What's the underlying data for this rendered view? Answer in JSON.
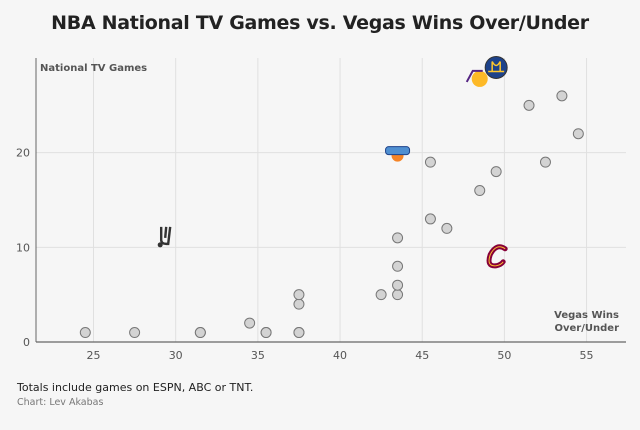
{
  "title": "NBA National TV Games vs. Vegas Wins Over/Under",
  "footer": {
    "note": "Totals include games on ESPN, ABC or TNT.",
    "credit": "Chart: Lev Akabas"
  },
  "chart_data": {
    "type": "scatter",
    "title": "NBA National TV Games vs. Vegas Wins Over/Under",
    "xlabel": "Vegas Wins Over/Under",
    "xlabel_lines": [
      "Vegas Wins",
      "Over/Under"
    ],
    "ylabel": "National TV Games",
    "xlim": [
      21.5,
      57.4
    ],
    "ylim": [
      0,
      30
    ],
    "xticks": [
      25,
      30,
      35,
      40,
      45,
      50,
      55
    ],
    "yticks": [
      0,
      10,
      20
    ],
    "grid": true,
    "legend": "none",
    "marker_color": "#d3d3d3",
    "marker_stroke": "#777777",
    "points": [
      {
        "x": 24.5,
        "y": 1
      },
      {
        "x": 27.5,
        "y": 1
      },
      {
        "x": 31.5,
        "y": 1
      },
      {
        "x": 31.5,
        "y": 1
      },
      {
        "x": 34.5,
        "y": 2
      },
      {
        "x": 35.5,
        "y": 1
      },
      {
        "x": 35.5,
        "y": 1
      },
      {
        "x": 37.5,
        "y": 1
      },
      {
        "x": 37.5,
        "y": 1
      },
      {
        "x": 37.5,
        "y": 4
      },
      {
        "x": 37.5,
        "y": 5
      },
      {
        "x": 42.5,
        "y": 5
      },
      {
        "x": 43.5,
        "y": 5
      },
      {
        "x": 43.5,
        "y": 6
      },
      {
        "x": 43.5,
        "y": 8
      },
      {
        "x": 43.5,
        "y": 11
      },
      {
        "x": 45.5,
        "y": 13
      },
      {
        "x": 46.5,
        "y": 12
      },
      {
        "x": 45.5,
        "y": 19
      },
      {
        "x": 48.5,
        "y": 16
      },
      {
        "x": 49.5,
        "y": 18
      },
      {
        "x": 51.5,
        "y": 25
      },
      {
        "x": 53.5,
        "y": 26
      },
      {
        "x": 54.5,
        "y": 22
      },
      {
        "x": 52.5,
        "y": 19
      }
    ],
    "logo_points": [
      {
        "icon": "spurs-logo",
        "x": 29.3,
        "y": 11
      },
      {
        "icon": "knicks-logo",
        "x": 43.5,
        "y": 20
      },
      {
        "icon": "lakers-logo",
        "x": 48.5,
        "y": 28
      },
      {
        "icon": "warriors-logo",
        "x": 49.5,
        "y": 29
      },
      {
        "icon": "cavaliers-logo",
        "x": 49.5,
        "y": 9
      }
    ]
  }
}
